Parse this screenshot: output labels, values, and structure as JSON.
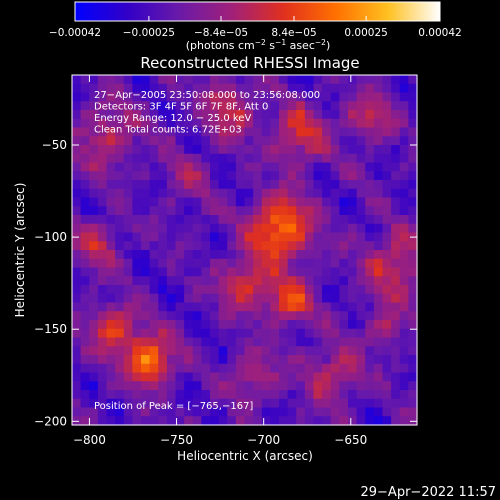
{
  "chart_data": {
    "type": "heatmap",
    "title": "Reconstructed RHESSI Image",
    "xlabel": "Heliocentric X (arcsec)",
    "ylabel": "Heliocentric Y (arcsec)",
    "xlim": [
      -810,
      -612
    ],
    "ylim": [
      -202,
      -12
    ],
    "x_ticks": [
      -800,
      -750,
      -700,
      -650
    ],
    "x_tick_labels": [
      "−800",
      "−750",
      "−700",
      "−650"
    ],
    "y_ticks": [
      -50,
      -100,
      -150,
      -200
    ],
    "y_tick_labels": [
      "−50",
      "−100",
      "−150",
      "−200"
    ],
    "colorbar": {
      "ticks": [
        -0.00042,
        -0.00025,
        -8.4e-05,
        8.4e-05,
        0.00025,
        0.00042
      ],
      "tick_labels": [
        "−0.00042",
        "−0.00025",
        "−8.4e−05",
        "8.4e−05",
        "0.00025",
        "0.00042"
      ],
      "range": [
        -0.00042,
        0.00042
      ],
      "unit_parts": [
        "(photons cm",
        "−2",
        " s",
        "−1",
        " asec",
        "−2",
        ")"
      ]
    },
    "colormap_stops": [
      "#0000ff",
      "#3200c8",
      "#6a1aa8",
      "#a0207a",
      "#e0301e",
      "#ff7000",
      "#ffc020",
      "#ffffff"
    ],
    "annotations": [
      "27−Apr−2005 23:50:08.000 to 23:56:08.000",
      "Detectors: 3F 4F 5F 6F 7F 8F, Att 0",
      "Energy Range: 12.0 − 25.0 keV",
      "Clean     Total counts: 6.72E+03"
    ],
    "peak_label": "Position of Peak = [−765,−167]",
    "peak": [
      -765,
      -167
    ],
    "hotspots": [
      {
        "x": -690,
        "y": -95,
        "sigma": 12,
        "amp": 0.00042
      },
      {
        "x": -685,
        "y": -135,
        "sigma": 9,
        "amp": 0.0003
      },
      {
        "x": -710,
        "y": -125,
        "sigma": 10,
        "amp": 0.00028
      },
      {
        "x": -765,
        "y": -167,
        "sigma": 9,
        "amp": 0.00042
      },
      {
        "x": -785,
        "y": -150,
        "sigma": 10,
        "amp": 0.00028
      },
      {
        "x": -795,
        "y": -105,
        "sigma": 9,
        "amp": 0.0002
      },
      {
        "x": -790,
        "y": -45,
        "sigma": 12,
        "amp": 0.00022
      },
      {
        "x": -720,
        "y": -30,
        "sigma": 10,
        "amp": 0.00024
      },
      {
        "x": -680,
        "y": -45,
        "sigma": 11,
        "amp": 0.00025
      },
      {
        "x": -640,
        "y": -35,
        "sigma": 9,
        "amp": 0.00022
      },
      {
        "x": -625,
        "y": -115,
        "sigma": 12,
        "amp": 0.00025
      },
      {
        "x": -660,
        "y": -175,
        "sigma": 11,
        "amp": 0.00022
      },
      {
        "x": -705,
        "y": -175,
        "sigma": 9,
        "amp": 0.0002
      },
      {
        "x": -745,
        "y": -70,
        "sigma": 10,
        "amp": 0.00012
      },
      {
        "x": -630,
        "y": -150,
        "sigma": 8,
        "amp": 0.00018
      }
    ]
  },
  "footer": {
    "timestamp": "29−Apr−2022 11:57"
  }
}
